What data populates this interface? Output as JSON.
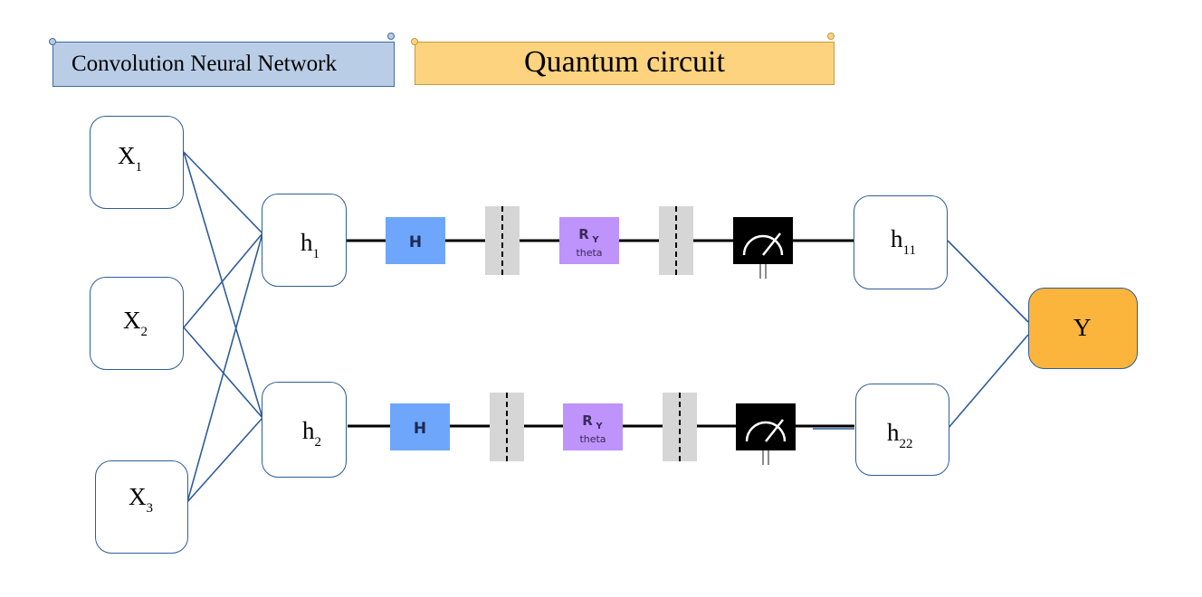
{
  "banners": {
    "cnn": "Convolution Neural Network",
    "quantum": "Quantum circuit"
  },
  "inputs": [
    {
      "base": "X",
      "sub": "1"
    },
    {
      "base": "X",
      "sub": "2"
    },
    {
      "base": "X",
      "sub": "3"
    }
  ],
  "hidden": [
    {
      "base": "h",
      "sub": "1"
    },
    {
      "base": "h",
      "sub": "2"
    }
  ],
  "outputs_hidden": [
    {
      "base": "h",
      "sub": "11"
    },
    {
      "base": "h",
      "sub": "22"
    }
  ],
  "output": "Y",
  "gates": {
    "hadamard": "H",
    "rotation": "R",
    "rotation_sub": "Y",
    "rotation_param": "theta"
  },
  "colors": {
    "node_border": "#2e5d9a",
    "hadamard": "#6ea6fb",
    "rotation": "#be93fb",
    "barrier": "#d6d6d6",
    "measure": "#000000",
    "output_fill": "#fbb43c",
    "cnn_banner": "#b9cde6",
    "qc_banner": "#fdd37f"
  }
}
